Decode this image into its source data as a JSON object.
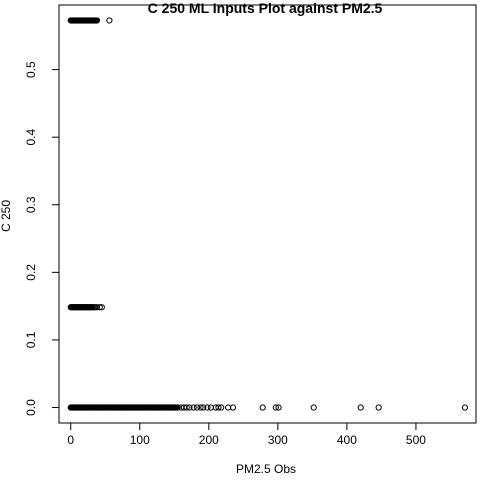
{
  "chart_data": {
    "type": "scatter",
    "title": "C 250 ML Inputs Plot against PM2.5",
    "xlabel": "PM2.5 Obs",
    "ylabel": "C 250",
    "xlim": [
      -17,
      587
    ],
    "ylim": [
      -0.0229,
      0.5956
    ],
    "x_ticks": [
      0,
      100,
      200,
      300,
      400,
      500
    ],
    "y_ticks": [
      0.0,
      0.1,
      0.2,
      0.3,
      0.4,
      0.5
    ],
    "x_tick_labels": [
      "0",
      "100",
      "200",
      "300",
      "400",
      "500"
    ],
    "y_tick_labels": [
      "0.0",
      "0.1",
      "0.2",
      "0.3",
      "0.4",
      "0.5"
    ],
    "grid": false,
    "clusters": [
      {
        "y": 0.5727,
        "x_dense_range": [
          0,
          38
        ],
        "x_extra": [
          56
        ]
      },
      {
        "y": 0.1484,
        "x_dense_range": [
          0,
          32
        ],
        "x_extra": [
          34,
          36,
          38,
          42,
          45
        ]
      },
      {
        "y": 0.0,
        "x_dense_range": [
          0,
          155
        ],
        "x_extra": [
          160,
          164,
          168,
          172,
          178,
          183,
          188,
          192,
          198,
          203,
          210,
          214,
          218,
          228,
          235,
          278,
          297,
          301,
          352,
          420,
          446,
          571
        ]
      }
    ]
  }
}
